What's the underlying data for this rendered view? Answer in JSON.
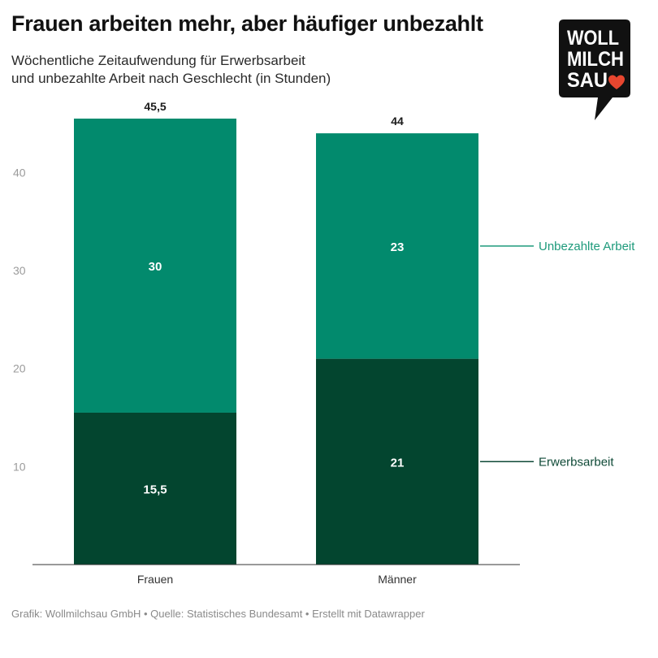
{
  "title": "Frauen arbeiten mehr, aber häufiger unbezahlt",
  "subtitle_line1": "Wöchentliche Zeitaufwendung für Erwerbsarbeit",
  "subtitle_line2": "und unbezahlte Arbeit nach Geschlecht (in Stunden)",
  "logo": {
    "line1": "WOLL",
    "line2": "MILCH",
    "line3": "SAU",
    "heart_color": "#e8462f",
    "background_color": "#111111"
  },
  "footer": "Grafik: Wollmilchsau GmbH • Quelle: Statistisches Bundesamt • Erstellt mit Datawrapper",
  "chart_data": {
    "type": "bar",
    "stacked": true,
    "categories": [
      "Frauen",
      "Männer"
    ],
    "series": [
      {
        "name": "Erwerbsarbeit",
        "values": [
          15.5,
          21
        ],
        "labels": [
          "15,5",
          "21"
        ],
        "color": "#03452f"
      },
      {
        "name": "Unbezahlte Arbeit",
        "values": [
          30,
          23
        ],
        "labels": [
          "30",
          "23"
        ],
        "color": "#028a6d"
      }
    ],
    "totals": [
      45.5,
      44
    ],
    "total_labels": [
      "45,5",
      "44"
    ],
    "ylim": [
      0,
      45.5
    ],
    "yticks": [
      10,
      20,
      30,
      40
    ],
    "ytick_labels": [
      "10",
      "20",
      "30",
      "40"
    ],
    "legend_placement": "right, aligned with segments",
    "legend_colors": {
      "Unbezahlte Arbeit": "#1d9a7b",
      "Erwerbsarbeit": "#0f4a37"
    },
    "grid": false,
    "xlabel": "",
    "ylabel": ""
  }
}
